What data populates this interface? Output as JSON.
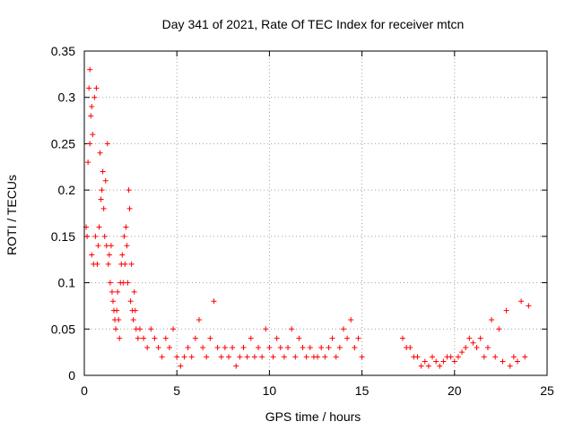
{
  "chart_data": {
    "type": "scatter",
    "title": "Day 341 of 2021, Rate Of TEC Index for receiver mtcn",
    "xlabel": "GPS time / hours",
    "ylabel": "ROTI / TECUs",
    "xlim": [
      0,
      25
    ],
    "ylim": [
      0,
      0.35
    ],
    "xticks": [
      "0",
      "5",
      "10",
      "15",
      "20",
      "25"
    ],
    "yticks": [
      "0",
      "0.05",
      "0.1",
      "0.15",
      "0.2",
      "0.25",
      "0.3",
      "0.35"
    ],
    "grid": true,
    "marker": "+",
    "color": "#ff0000",
    "series": [
      {
        "x": [
          0.1,
          0.15,
          0.2,
          0.25,
          0.3,
          0.3,
          0.35,
          0.4,
          0.4,
          0.45,
          0.5,
          0.55,
          0.6,
          0.65,
          0.7,
          0.75,
          0.8,
          0.85,
          0.9,
          0.95,
          1.0,
          1.05,
          1.1,
          1.15,
          1.2,
          1.25,
          1.3,
          1.35,
          1.4,
          1.45,
          1.5,
          1.55,
          1.6,
          1.65,
          1.7,
          1.75,
          1.8,
          1.85,
          1.9,
          1.95,
          2.0,
          2.05,
          2.1,
          2.15,
          2.2,
          2.25,
          2.3,
          2.35,
          2.4,
          2.45,
          2.5,
          2.55,
          2.6,
          2.65,
          2.7,
          2.75,
          2.8,
          2.9,
          3.0,
          3.2,
          3.4,
          3.6,
          3.8,
          4.0,
          4.2,
          4.4,
          4.6,
          4.8,
          5.0,
          5.2,
          5.4,
          5.6,
          5.8,
          6.0,
          6.2,
          6.4,
          6.6,
          6.8,
          7.0,
          7.2,
          7.4,
          7.6,
          7.8,
          8.0,
          8.2,
          8.4,
          8.6,
          8.8,
          9.0,
          9.2,
          9.4,
          9.6,
          9.8,
          10.0,
          10.2,
          10.4,
          10.6,
          10.8,
          11.0,
          11.2,
          11.4,
          11.6,
          11.8,
          12.0,
          12.2,
          12.4,
          12.6,
          12.8,
          13.0,
          13.2,
          13.4,
          13.6,
          13.8,
          14.0,
          14.2,
          14.4,
          14.6,
          14.8,
          15.0,
          17.2,
          17.4,
          17.6,
          17.8,
          18.0,
          18.2,
          18.4,
          18.6,
          18.8,
          19.0,
          19.2,
          19.4,
          19.6,
          19.8,
          20.0,
          20.2,
          20.4,
          20.6,
          20.8,
          21.0,
          21.2,
          21.4,
          21.6,
          21.8,
          22.0,
          22.2,
          22.4,
          22.6,
          22.8,
          23.0,
          23.2,
          23.4,
          23.6,
          23.8,
          24.0
        ],
        "y": [
          0.16,
          0.15,
          0.23,
          0.31,
          0.25,
          0.33,
          0.28,
          0.29,
          0.13,
          0.26,
          0.12,
          0.3,
          0.15,
          0.31,
          0.12,
          0.14,
          0.16,
          0.24,
          0.19,
          0.2,
          0.22,
          0.18,
          0.15,
          0.21,
          0.14,
          0.25,
          0.12,
          0.13,
          0.1,
          0.14,
          0.09,
          0.08,
          0.07,
          0.06,
          0.05,
          0.07,
          0.09,
          0.06,
          0.04,
          0.1,
          0.12,
          0.13,
          0.1,
          0.15,
          0.12,
          0.16,
          0.14,
          0.1,
          0.2,
          0.18,
          0.08,
          0.12,
          0.07,
          0.06,
          0.09,
          0.07,
          0.05,
          0.04,
          0.05,
          0.04,
          0.03,
          0.05,
          0.04,
          0.03,
          0.02,
          0.04,
          0.03,
          0.05,
          0.02,
          0.01,
          0.02,
          0.03,
          0.02,
          0.04,
          0.06,
          0.03,
          0.02,
          0.04,
          0.08,
          0.03,
          0.02,
          0.03,
          0.02,
          0.03,
          0.01,
          0.02,
          0.03,
          0.02,
          0.04,
          0.02,
          0.03,
          0.02,
          0.05,
          0.03,
          0.02,
          0.04,
          0.03,
          0.02,
          0.03,
          0.05,
          0.02,
          0.04,
          0.03,
          0.02,
          0.03,
          0.02,
          0.02,
          0.03,
          0.02,
          0.03,
          0.04,
          0.02,
          0.03,
          0.05,
          0.04,
          0.06,
          0.03,
          0.04,
          0.02,
          0.04,
          0.03,
          0.03,
          0.02,
          0.02,
          0.01,
          0.015,
          0.01,
          0.02,
          0.015,
          0.01,
          0.015,
          0.02,
          0.02,
          0.015,
          0.02,
          0.025,
          0.03,
          0.04,
          0.035,
          0.03,
          0.04,
          0.02,
          0.03,
          0.06,
          0.02,
          0.05,
          0.015,
          0.07,
          0.01,
          0.02,
          0.015,
          0.08,
          0.02,
          0.075
        ]
      }
    ]
  }
}
